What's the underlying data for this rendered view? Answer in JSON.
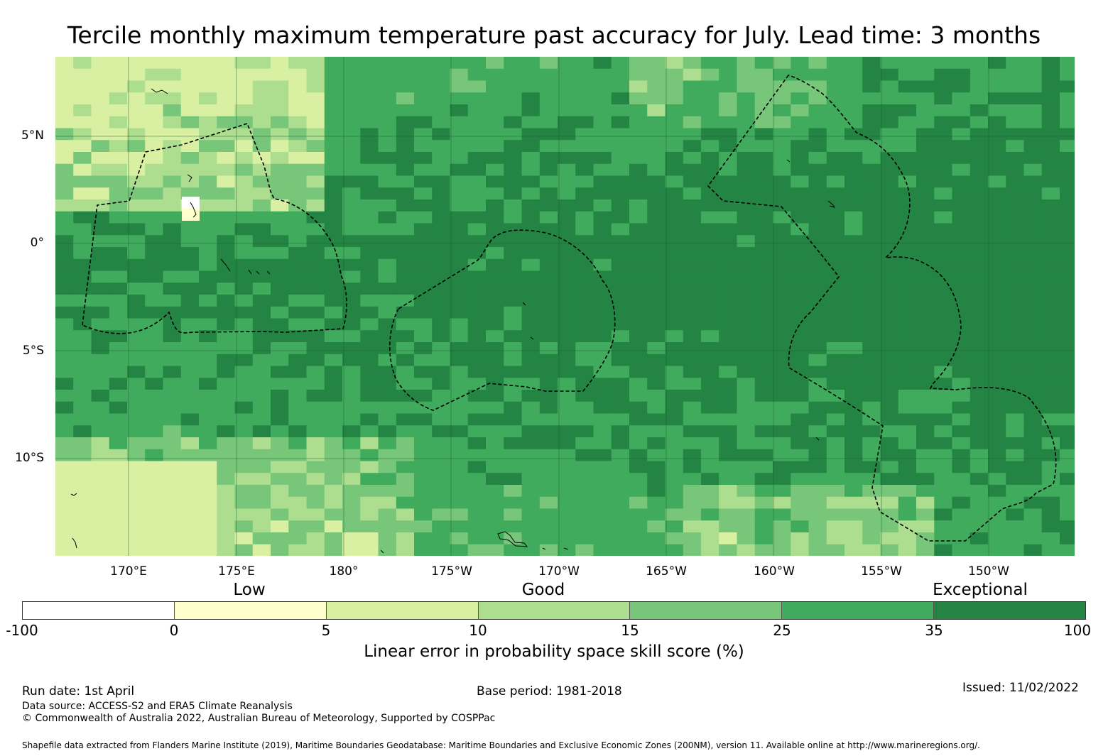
{
  "title": "Tercile monthly maximum temperature past accuracy for July. Lead time: 3 months",
  "map": {
    "lat_labels": [
      "5°N",
      "0°",
      "5°S",
      "10°S"
    ],
    "lon_labels": [
      "170°E",
      "175°E",
      "180°",
      "175°W",
      "170°W",
      "165°W",
      "160°W",
      "155°W",
      "150°W"
    ]
  },
  "legend": {
    "categories": [
      "Low",
      "Good",
      "Exceptional"
    ],
    "ticks": [
      "-100",
      "0",
      "5",
      "10",
      "15",
      "25",
      "35",
      "100"
    ],
    "colors": [
      "#ffffff",
      "#ffffcc",
      "#d9f0a3",
      "#addd8e",
      "#78c679",
      "#41ab5d",
      "#238443"
    ],
    "label": "Linear error in probability space skill score (%)"
  },
  "footer": {
    "run_date": "Run date: 1st April",
    "base_period": "Base period: 1981-2018",
    "issued": "Issued: 11/02/2022",
    "data_source": "Data source: ACCESS-S2 and ERA5 Climate Reanalysis",
    "copyright": "© Commonwealth of Australia 2022, Australian Bureau of Meteorology, Supported by COSPPac",
    "shapefile": "Shapefile data extracted from Flanders Marine Institute (2019), Maritime Boundaries Geodatabase: Maritime Boundaries and Exclusive Economic Zones (200NM), version 11. Available online at http://www.marineregions.org/."
  }
}
